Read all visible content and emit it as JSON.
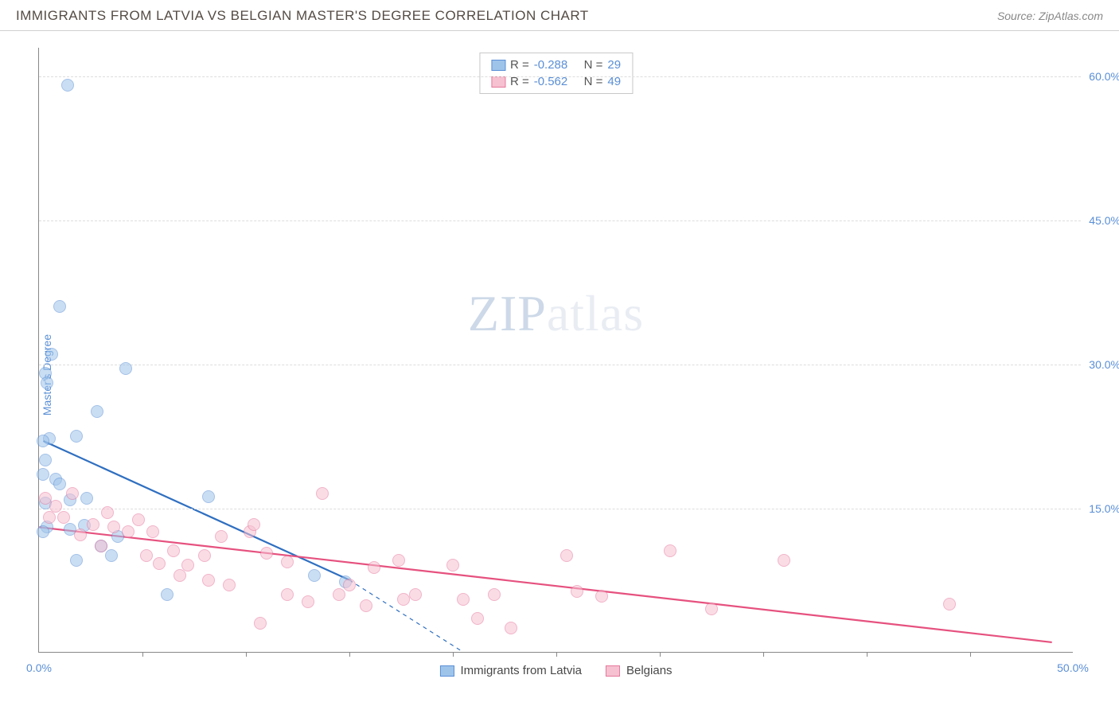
{
  "header": {
    "title": "IMMIGRANTS FROM LATVIA VS BELGIAN MASTER'S DEGREE CORRELATION CHART",
    "source_prefix": "Source: ",
    "source_link": "ZipAtlas.com"
  },
  "chart": {
    "type": "scatter",
    "ylabel": "Master's Degree",
    "xlim": [
      0,
      50
    ],
    "ylim": [
      0,
      63
    ],
    "yticks": [
      15.0,
      30.0,
      45.0,
      60.0
    ],
    "ytick_labels": [
      "15.0%",
      "30.0%",
      "45.0%",
      "60.0%"
    ],
    "x_left_label": "0.0%",
    "x_right_label": "50.0%",
    "xtick_positions": [
      5,
      10,
      15,
      20,
      25,
      30,
      35,
      40,
      45
    ],
    "background_color": "#ffffff",
    "grid_color": "#dddddd",
    "axis_color": "#888888",
    "marker_radius": 8,
    "marker_opacity": 0.55,
    "marker_border_width": 1.2,
    "watermark": {
      "left": "ZIP",
      "right": "atlas"
    },
    "series": [
      {
        "name": "Immigrants from Latvia",
        "color_fill": "#9fc4ea",
        "color_stroke": "#5a8fd6",
        "R": "-0.288",
        "N": "29",
        "trend": {
          "x1": 0.2,
          "y1": 22.0,
          "x2": 15.0,
          "y2": 7.5,
          "dash_to_x": 20.5,
          "dash_to_y": 0.0,
          "stroke": "#2f6fc0",
          "width": 2.2
        },
        "points": [
          [
            1.4,
            59.0
          ],
          [
            1.0,
            36.0
          ],
          [
            0.6,
            31.0
          ],
          [
            0.3,
            29.0
          ],
          [
            0.4,
            28.0
          ],
          [
            4.2,
            29.5
          ],
          [
            0.5,
            22.2
          ],
          [
            0.2,
            22.0
          ],
          [
            1.8,
            22.5
          ],
          [
            2.8,
            25.0
          ],
          [
            0.3,
            20.0
          ],
          [
            0.2,
            18.5
          ],
          [
            0.8,
            18.0
          ],
          [
            1.0,
            17.5
          ],
          [
            0.3,
            15.5
          ],
          [
            1.5,
            15.8
          ],
          [
            2.3,
            16.0
          ],
          [
            8.2,
            16.2
          ],
          [
            0.4,
            13.0
          ],
          [
            0.2,
            12.5
          ],
          [
            1.5,
            12.8
          ],
          [
            2.2,
            13.2
          ],
          [
            3.0,
            11.0
          ],
          [
            1.8,
            9.5
          ],
          [
            3.5,
            10.0
          ],
          [
            6.2,
            6.0
          ],
          [
            13.3,
            8.0
          ],
          [
            14.8,
            7.3
          ],
          [
            3.8,
            12.0
          ]
        ]
      },
      {
        "name": "Belgians",
        "color_fill": "#f6c1d1",
        "color_stroke": "#e6789d",
        "R": "-0.562",
        "N": "49",
        "trend": {
          "x1": 0.0,
          "y1": 13.0,
          "x2": 49.0,
          "y2": 1.0,
          "stroke": "#e6517f",
          "width": 2.2
        },
        "points": [
          [
            0.3,
            16.0
          ],
          [
            0.8,
            15.2
          ],
          [
            0.5,
            14.0
          ],
          [
            1.6,
            16.5
          ],
          [
            1.2,
            14.0
          ],
          [
            2.6,
            13.3
          ],
          [
            2.0,
            12.2
          ],
          [
            3.3,
            14.5
          ],
          [
            3.6,
            13.0
          ],
          [
            3.0,
            11.0
          ],
          [
            4.8,
            13.8
          ],
          [
            4.3,
            12.5
          ],
          [
            5.5,
            12.5
          ],
          [
            5.2,
            10.0
          ],
          [
            5.8,
            9.2
          ],
          [
            6.5,
            10.5
          ],
          [
            7.2,
            9.0
          ],
          [
            6.8,
            8.0
          ],
          [
            8.0,
            10.0
          ],
          [
            8.2,
            7.5
          ],
          [
            8.8,
            12.0
          ],
          [
            9.2,
            7.0
          ],
          [
            10.2,
            12.5
          ],
          [
            10.4,
            13.3
          ],
          [
            11.0,
            10.3
          ],
          [
            12.0,
            9.4
          ],
          [
            12.0,
            6.0
          ],
          [
            13.0,
            5.2
          ],
          [
            13.7,
            16.5
          ],
          [
            14.5,
            6.0
          ],
          [
            15.0,
            7.0
          ],
          [
            15.8,
            4.8
          ],
          [
            16.2,
            8.8
          ],
          [
            17.4,
            9.5
          ],
          [
            17.6,
            5.5
          ],
          [
            18.2,
            6.0
          ],
          [
            20.0,
            9.0
          ],
          [
            20.5,
            5.5
          ],
          [
            21.2,
            3.5
          ],
          [
            22.0,
            6.0
          ],
          [
            22.8,
            2.5
          ],
          [
            25.5,
            10.0
          ],
          [
            26.0,
            6.3
          ],
          [
            27.2,
            5.8
          ],
          [
            30.5,
            10.5
          ],
          [
            32.5,
            4.5
          ],
          [
            36.0,
            9.5
          ],
          [
            44.0,
            5.0
          ],
          [
            10.7,
            3.0
          ]
        ]
      }
    ],
    "legend_top_labels": {
      "R": "R =",
      "N": "N ="
    }
  }
}
